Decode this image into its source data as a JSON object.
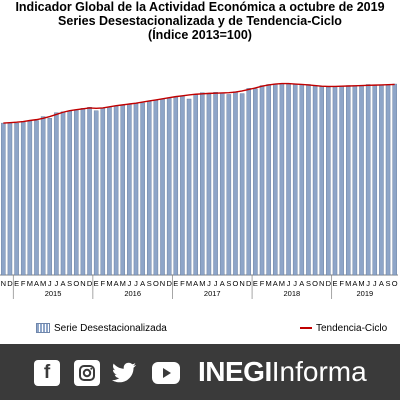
{
  "title": {
    "line1": "Indicador Global de la Actividad Económica a octubre de 2019",
    "line2": "Series Desestacionalizada y de Tendencia-Ciclo",
    "line3": "(Índice 2013=100)"
  },
  "chart_data": {
    "type": "bar",
    "title": "Indicador Global de la Actividad Económica a octubre de 2019",
    "subtitle": "Series Desestacionalizada y de Tendencia-Ciclo (Índice 2013=100)",
    "ylim": [
      0,
      1
    ],
    "month_letters": [
      "E",
      "F",
      "M",
      "A",
      "M",
      "J",
      "J",
      "A",
      "S",
      "O",
      "N",
      "D"
    ],
    "year_labels": [
      "2015",
      "2016",
      "2017",
      "2018",
      "2019"
    ],
    "categories": [
      "2014-11",
      "2014-12",
      "2015-01",
      "2015-02",
      "2015-03",
      "2015-04",
      "2015-05",
      "2015-06",
      "2015-07",
      "2015-08",
      "2015-09",
      "2015-10",
      "2015-11",
      "2015-12",
      "2016-01",
      "2016-02",
      "2016-03",
      "2016-04",
      "2016-05",
      "2016-06",
      "2016-07",
      "2016-08",
      "2016-09",
      "2016-10",
      "2016-11",
      "2016-12",
      "2017-01",
      "2017-02",
      "2017-03",
      "2017-04",
      "2017-05",
      "2017-06",
      "2017-07",
      "2017-08",
      "2017-09",
      "2017-10",
      "2017-11",
      "2017-12",
      "2018-01",
      "2018-02",
      "2018-03",
      "2018-04",
      "2018-05",
      "2018-06",
      "2018-07",
      "2018-08",
      "2018-09",
      "2018-10",
      "2018-11",
      "2018-12",
      "2019-01",
      "2019-02",
      "2019-03",
      "2019-04",
      "2019-05",
      "2019-06",
      "2019-07",
      "2019-08",
      "2019-09",
      "2019-10"
    ],
    "series": [
      {
        "name": "Serie Desestacionalizada",
        "values": [
          0.7,
          0.702,
          0.7,
          0.705,
          0.708,
          0.712,
          0.73,
          0.722,
          0.748,
          0.752,
          0.755,
          0.762,
          0.768,
          0.773,
          0.757,
          0.768,
          0.775,
          0.778,
          0.783,
          0.788,
          0.79,
          0.793,
          0.8,
          0.805,
          0.811,
          0.815,
          0.822,
          0.826,
          0.811,
          0.832,
          0.84,
          0.833,
          0.842,
          0.838,
          0.832,
          0.845,
          0.836,
          0.86,
          0.858,
          0.873,
          0.878,
          0.88,
          0.883,
          0.88,
          0.881,
          0.878,
          0.878,
          0.871,
          0.868,
          0.866,
          0.869,
          0.871,
          0.873,
          0.873,
          0.873,
          0.878,
          0.876,
          0.875,
          0.876,
          0.88
        ]
      },
      {
        "name": "Tendencia-Ciclo",
        "values": [
          0.7,
          0.702,
          0.704,
          0.707,
          0.712,
          0.716,
          0.722,
          0.73,
          0.74,
          0.75,
          0.757,
          0.762,
          0.766,
          0.77,
          0.768,
          0.77,
          0.775,
          0.78,
          0.784,
          0.788,
          0.792,
          0.797,
          0.802,
          0.807,
          0.812,
          0.817,
          0.822,
          0.826,
          0.83,
          0.833,
          0.835,
          0.837,
          0.838,
          0.839,
          0.84,
          0.843,
          0.848,
          0.855,
          0.862,
          0.87,
          0.876,
          0.88,
          0.882,
          0.882,
          0.88,
          0.878,
          0.876,
          0.873,
          0.87,
          0.869,
          0.869,
          0.87,
          0.871,
          0.872,
          0.873,
          0.874,
          0.875,
          0.876,
          0.877,
          0.878
        ]
      }
    ],
    "legend": [
      "Serie Desestacionalizada",
      "Tendencia-Ciclo"
    ],
    "legend_position": "bottom",
    "grid": false
  },
  "colors": {
    "bar_fill": "#8ea5c8",
    "bar_stroke": "#5f7597",
    "trend_line": "#c00000",
    "footer_bg": "#3a3a3a"
  },
  "footer": {
    "icons": [
      "facebook-icon",
      "instagram-icon",
      "twitter-icon",
      "youtube-icon"
    ],
    "brand_strong": "INEGI",
    "brand_light": "Informa"
  }
}
